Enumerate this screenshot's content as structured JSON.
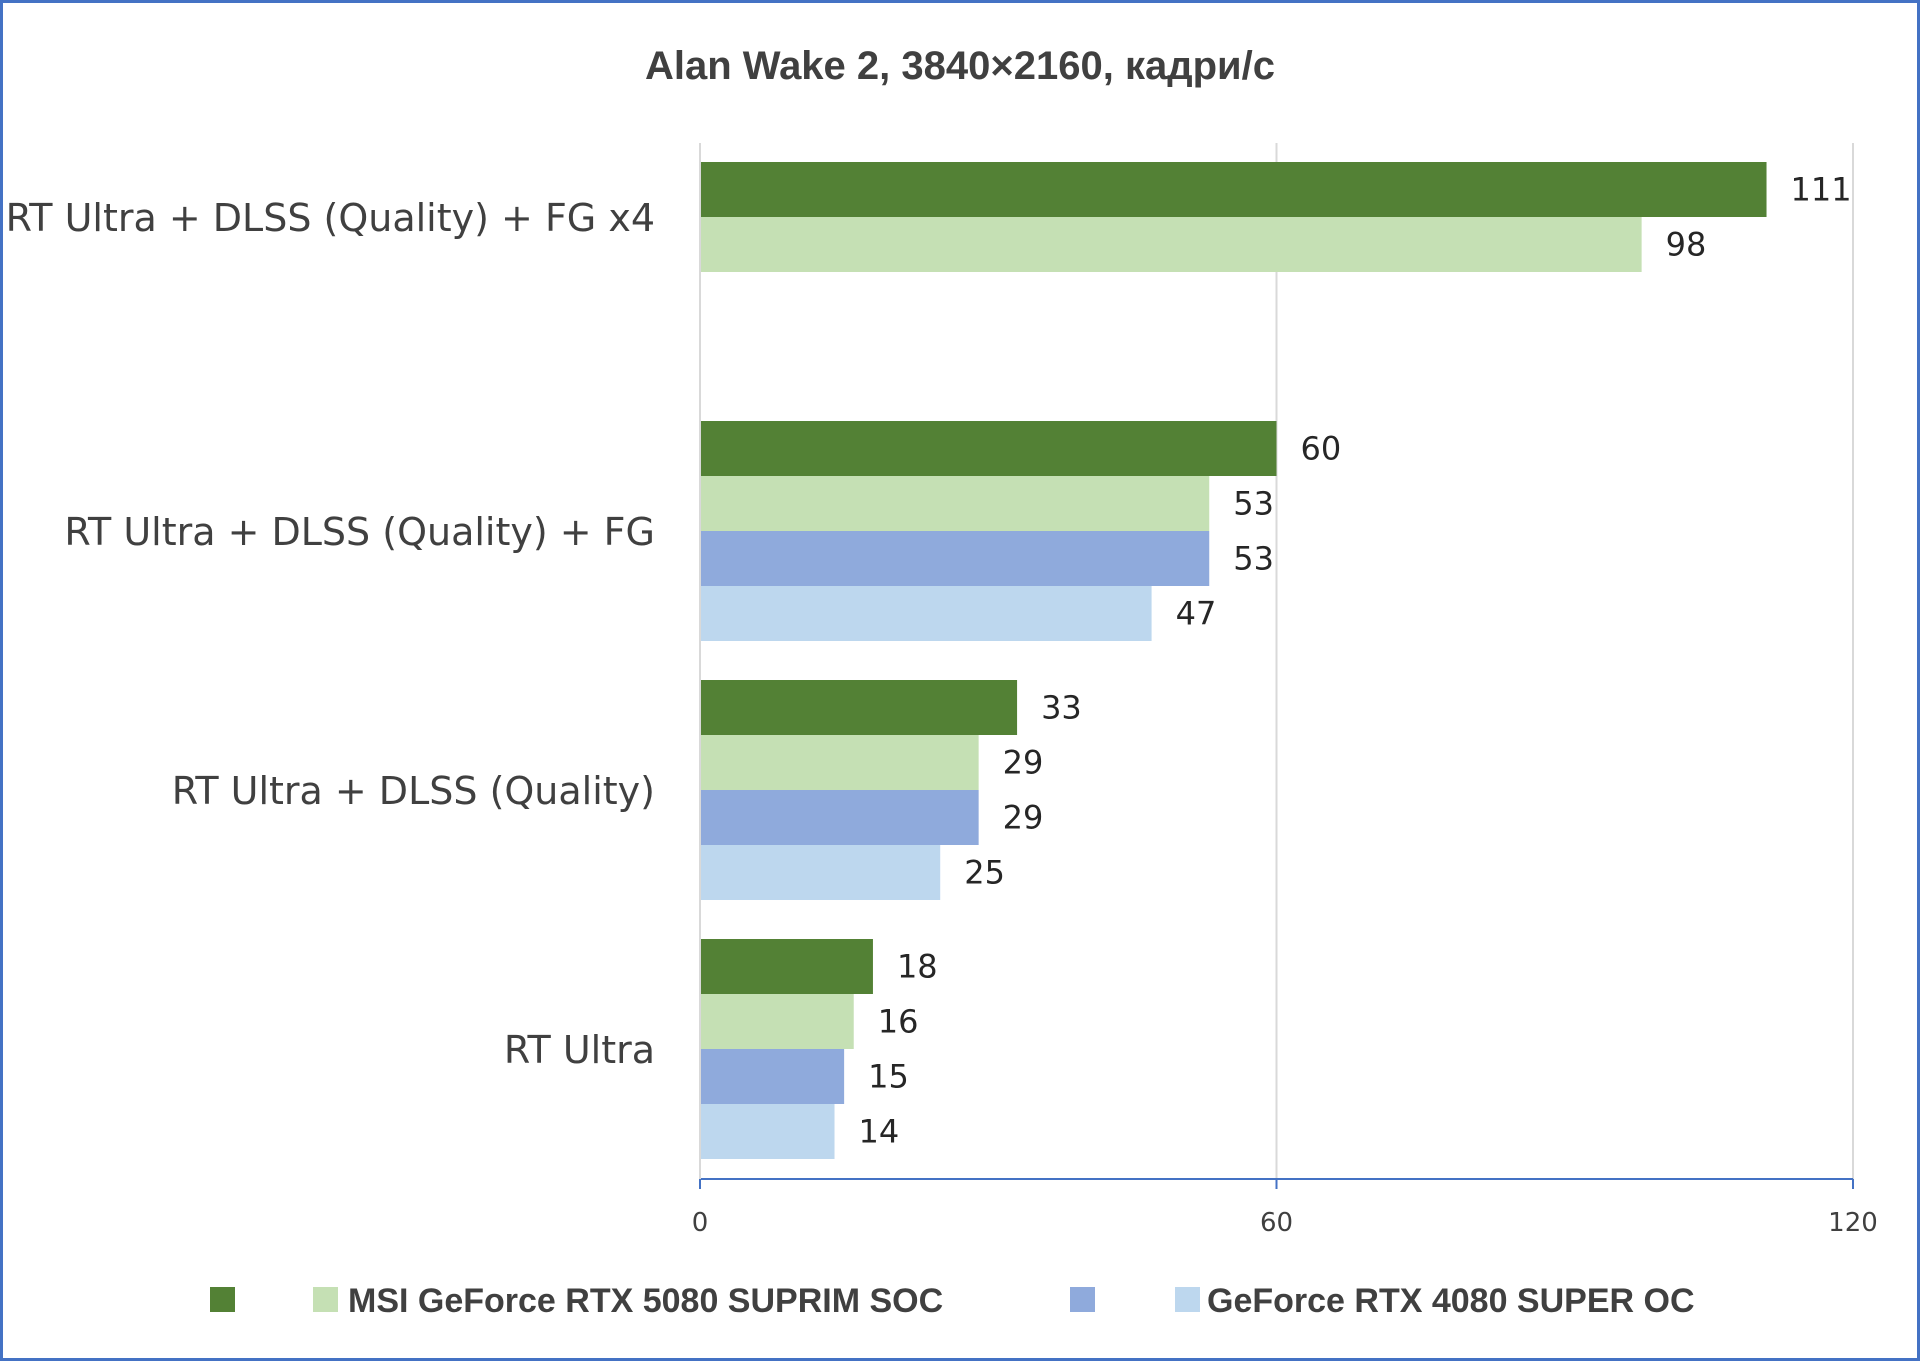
{
  "chart_data": {
    "type": "bar",
    "orientation": "horizontal",
    "title": "Alan Wake 2, 3840×2160, кадри/с",
    "xlabel": "",
    "ylabel": "",
    "xlim": [
      0,
      120
    ],
    "ticks": [
      "0",
      "60",
      "120"
    ],
    "gridlines": true,
    "legend_position": "bottom",
    "categories": [
      "RT Ultra + DLSS (Quality) + FG x4",
      "RT Ultra + DLSS (Quality) + FG",
      "RT Ultra + DLSS (Quality)",
      "RT Ultra"
    ],
    "series": [
      {
        "color": "#538135",
        "values": [
          111,
          60,
          33,
          18
        ]
      },
      {
        "name": "MSI GeForce RTX 5080 SUPRIM SOC",
        "color": "#c5e0b4",
        "values": [
          98,
          53,
          29,
          16
        ]
      },
      {
        "color": "#8faadc",
        "values": [
          null,
          53,
          29,
          15
        ]
      },
      {
        "name": "GeForce RTX 4080 SUPER OC",
        "color": "#bdd7ee",
        "values": [
          null,
          47,
          25,
          14
        ]
      }
    ]
  }
}
